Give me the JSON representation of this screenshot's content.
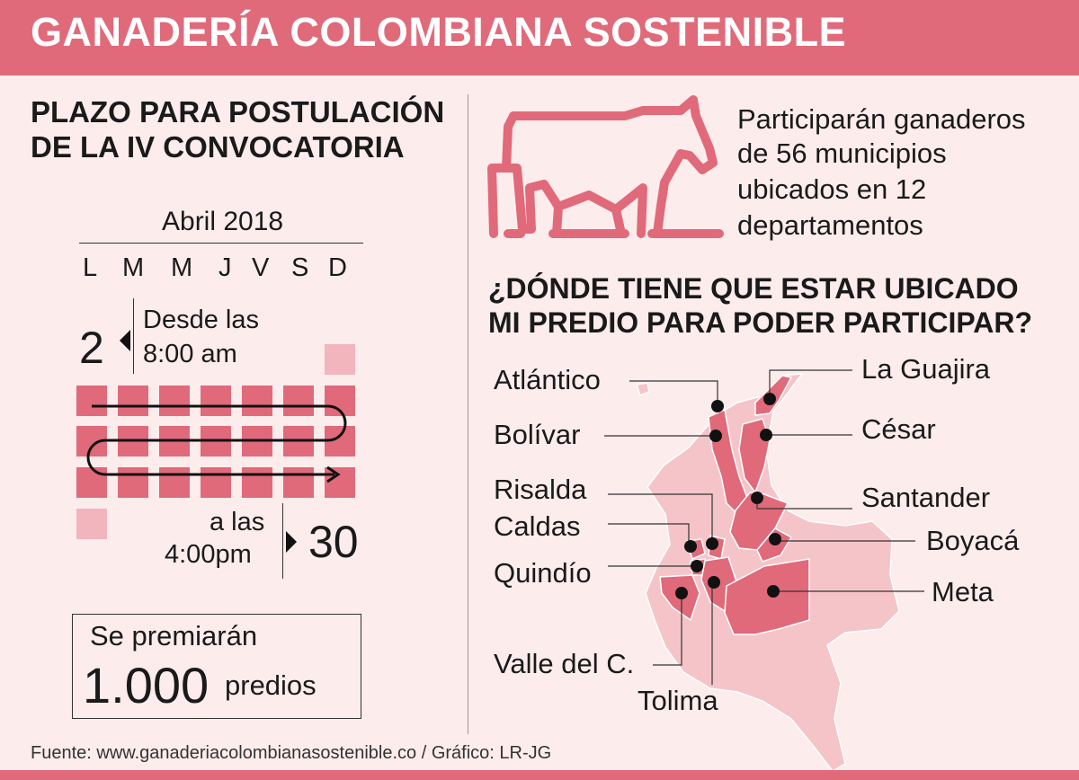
{
  "header": {
    "title": "GANADERÍA COLOMBIANA SOSTENIBLE"
  },
  "left": {
    "deadline_title_line1": "PLAZO PARA POSTULACIÓN",
    "deadline_title_line2": "DE LA IV CONVOCATORIA",
    "calendar": {
      "month": "Abril 2018",
      "weekdays": [
        "L",
        "M",
        "M",
        "J",
        "V",
        "S",
        "D"
      ],
      "start_day": "2",
      "start_text_line1": "Desde las",
      "start_text_line2": "8:00 am",
      "end_day": "30",
      "end_text_line1": "a las",
      "end_text_line2": "4:00pm"
    },
    "prize": {
      "line1": "Se premiarán",
      "number": "1.000",
      "unit": "predios"
    }
  },
  "right": {
    "participants_lines": [
      "Participarán ganaderos",
      "de 56 municipios",
      "ubicados en 12",
      "departamentos"
    ],
    "question_line1": "¿DÓNDE TIENE QUE ESTAR UBICADO",
    "question_line2": "MI PREDIO PARA PODER PARTICIPAR?",
    "map_labels": {
      "atlantico": "Atlántico",
      "bolivar": "Bolívar",
      "risalda": "Risalda",
      "caldas": "Caldas",
      "quindio": "Quindío",
      "valle": "Valle del C.",
      "tolima": "Tolima",
      "guajira": "La Guajira",
      "cesar": "César",
      "santander": "Santander",
      "boyaca": "Boyacá",
      "meta": "Meta"
    }
  },
  "footer": {
    "source": "Fuente:  www.ganaderiacolombianasostenible.co / Gráfico: LR-JG"
  },
  "colors": {
    "accent": "#e06a7a",
    "light_accent": "#f2b5bd",
    "background": "#fdecec",
    "map_base": "#f5c4c9"
  }
}
